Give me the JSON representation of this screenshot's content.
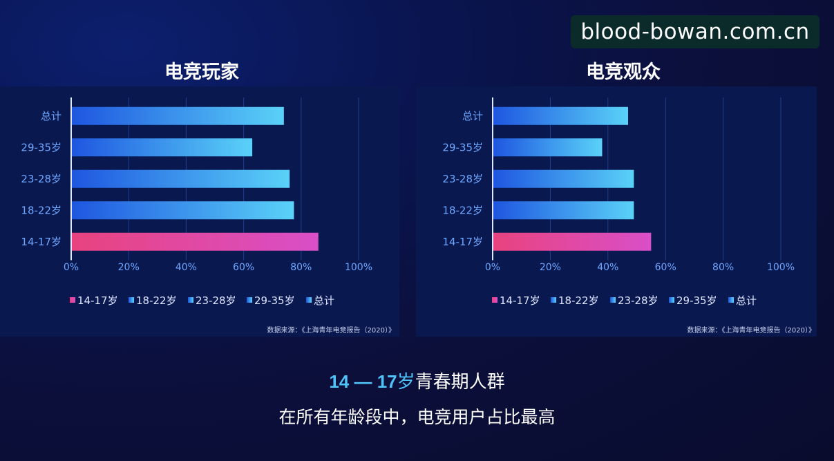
{
  "watermark": "blood-bowan.com.cn",
  "colors": {
    "highlight_start": "#e8437f",
    "highlight_end": "#d94fc8",
    "bar_start": "#1e56e0",
    "bar_end": "#5ad2f8",
    "axis_text": "#6fa8ff",
    "grid": "#1d3f8f"
  },
  "source_label": "数据来源：《上海青年电竞报告（2020）》",
  "headline": {
    "highlight": "14 — 17",
    "rest_part1": "岁",
    "rest_part2": "青春期人群"
  },
  "subline": "在所有年龄段中，电竞用户占比最高",
  "chart_data": [
    {
      "type": "bar",
      "orientation": "horizontal",
      "title": "电竞玩家",
      "categories": [
        "总计",
        "29-35岁",
        "23-28岁",
        "18-22岁",
        "14-17岁"
      ],
      "values": [
        74,
        63,
        76,
        77.5,
        86
      ],
      "highlight_category": "14-17岁",
      "xlim": [
        0,
        100
      ],
      "xticks": [
        "0%",
        "20%",
        "40%",
        "60%",
        "80%",
        "100%"
      ],
      "grid": true,
      "legend": [
        "14-17岁",
        "18-22岁",
        "23-28岁",
        "29-35岁",
        "总计"
      ],
      "legend_position": "bottom"
    },
    {
      "type": "bar",
      "orientation": "horizontal",
      "title": "电竞观众",
      "categories": [
        "总计",
        "29-35岁",
        "23-28岁",
        "18-22岁",
        "14-17岁"
      ],
      "values": [
        47,
        38,
        49,
        49,
        55
      ],
      "highlight_category": "14-17岁",
      "xlim": [
        0,
        100
      ],
      "xticks": [
        "0%",
        "20%",
        "40%",
        "60%",
        "80%",
        "100%"
      ],
      "grid": true,
      "legend": [
        "14-17岁",
        "18-22岁",
        "23-28岁",
        "29-35岁",
        "总计"
      ],
      "legend_position": "bottom"
    }
  ]
}
